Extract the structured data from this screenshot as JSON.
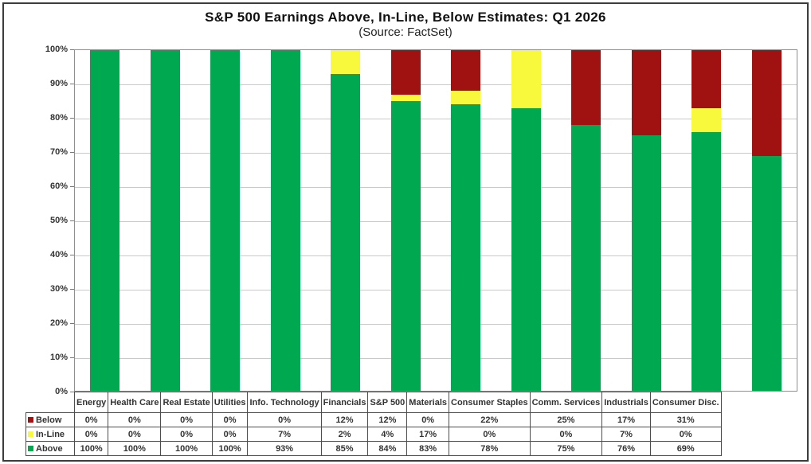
{
  "title": "S&P 500 Earnings Above, In-Line, Below Estimates: Q1 2026",
  "subtitle": "(Source: FactSet)",
  "colors": {
    "above": "#00A84F",
    "inline": "#F8F83C",
    "below": "#A01212",
    "gridline": "#C9C9C9",
    "plot_border": "#8F8F8F",
    "table_border": "#4D4D4D",
    "text": "#333333"
  },
  "chart_data": {
    "type": "bar",
    "stacked": true,
    "title": "S&P 500 Earnings Above, In-Line, Below Estimates: Q1 2026",
    "subtitle": "(Source: FactSet)",
    "categories": [
      "Energy",
      "Health Care",
      "Real Estate",
      "Utilities",
      "Info. Technology",
      "Financials",
      "S&P 500",
      "Materials",
      "Consumer Staples",
      "Comm. Services",
      "Industrials",
      "Consumer Disc."
    ],
    "series": [
      {
        "name": "Below",
        "color": "#A01212",
        "values": [
          0,
          0,
          0,
          0,
          0,
          12,
          12,
          0,
          22,
          25,
          17,
          31
        ]
      },
      {
        "name": "In-Line",
        "color": "#F8F83C",
        "values": [
          0,
          0,
          0,
          0,
          7,
          2,
          4,
          17,
          0,
          0,
          7,
          0
        ]
      },
      {
        "name": "Above",
        "color": "#00A84F",
        "values": [
          100,
          100,
          100,
          100,
          93,
          85,
          84,
          83,
          78,
          75,
          76,
          69
        ]
      }
    ],
    "stack_order_bottom_to_top": [
      "Above",
      "In-Line",
      "Below"
    ],
    "y_axis": {
      "min": 0,
      "max": 100,
      "step": 10,
      "tick_labels": [
        "100%",
        "90%",
        "80%",
        "70%",
        "60%",
        "50%",
        "40%",
        "30%",
        "20%",
        "10%",
        "0%"
      ]
    },
    "ylim": [
      0,
      100
    ],
    "grid": "horizontal",
    "legend_position": "table-row-headers",
    "value_suffix": "%"
  }
}
